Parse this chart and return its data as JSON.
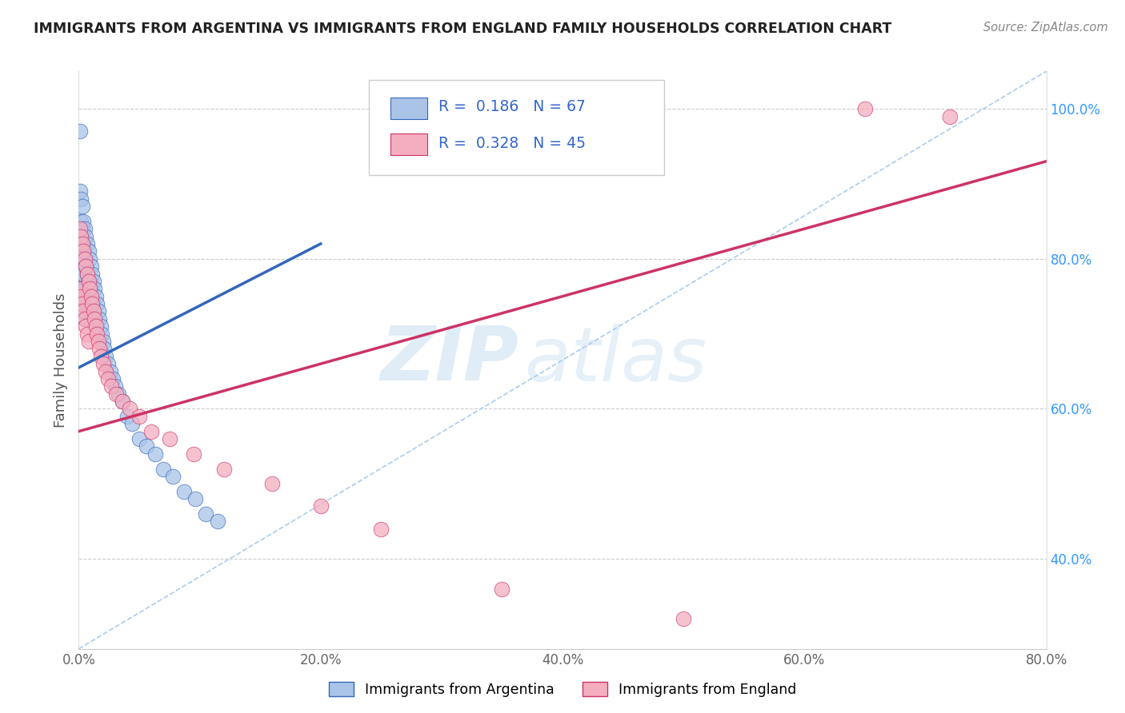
{
  "title": "IMMIGRANTS FROM ARGENTINA VS IMMIGRANTS FROM ENGLAND FAMILY HOUSEHOLDS CORRELATION CHART",
  "source": "Source: ZipAtlas.com",
  "ylabel": "Family Households",
  "argentina_R": 0.186,
  "argentina_N": 67,
  "england_R": 0.328,
  "england_N": 45,
  "watermark_zip": "ZIP",
  "watermark_atlas": "atlas",
  "argentina_color": "#aac4e8",
  "england_color": "#f5aec0",
  "argentina_line_color": "#3366bb",
  "england_line_color": "#cc3366",
  "ref_line_color": "#aaccee",
  "background": "#ffffff",
  "xlim": [
    0.0,
    0.8
  ],
  "ylim": [
    0.28,
    1.05
  ],
  "y_ticks_right": [
    0.4,
    0.6,
    0.8,
    1.0
  ],
  "x_ticks": [
    0.0,
    0.2,
    0.4,
    0.6,
    0.8
  ],
  "argentina_line_x": [
    0.0,
    0.2
  ],
  "argentina_line_y": [
    0.655,
    0.82
  ],
  "england_line_x": [
    0.0,
    0.8
  ],
  "england_line_y": [
    0.57,
    0.93
  ],
  "ref_line_x": [
    0.0,
    0.8
  ],
  "ref_line_y": [
    0.28,
    1.05
  ],
  "argentina_x": [
    0.001,
    0.001,
    0.001,
    0.001,
    0.002,
    0.002,
    0.002,
    0.002,
    0.002,
    0.003,
    0.003,
    0.003,
    0.003,
    0.003,
    0.004,
    0.004,
    0.004,
    0.004,
    0.005,
    0.005,
    0.005,
    0.005,
    0.006,
    0.006,
    0.006,
    0.007,
    0.007,
    0.007,
    0.008,
    0.008,
    0.008,
    0.009,
    0.009,
    0.009,
    0.01,
    0.01,
    0.011,
    0.011,
    0.012,
    0.012,
    0.013,
    0.014,
    0.015,
    0.016,
    0.017,
    0.018,
    0.019,
    0.02,
    0.021,
    0.022,
    0.024,
    0.026,
    0.028,
    0.03,
    0.033,
    0.036,
    0.04,
    0.044,
    0.05,
    0.056,
    0.063,
    0.07,
    0.078,
    0.087,
    0.096,
    0.105,
    0.115
  ],
  "argentina_y": [
    0.97,
    0.89,
    0.83,
    0.76,
    0.88,
    0.85,
    0.82,
    0.78,
    0.74,
    0.87,
    0.84,
    0.8,
    0.76,
    0.73,
    0.85,
    0.82,
    0.78,
    0.75,
    0.84,
    0.8,
    0.76,
    0.72,
    0.83,
    0.79,
    0.75,
    0.82,
    0.78,
    0.74,
    0.81,
    0.77,
    0.73,
    0.8,
    0.77,
    0.73,
    0.79,
    0.76,
    0.78,
    0.74,
    0.77,
    0.73,
    0.76,
    0.75,
    0.74,
    0.73,
    0.72,
    0.71,
    0.7,
    0.69,
    0.68,
    0.67,
    0.66,
    0.65,
    0.64,
    0.63,
    0.62,
    0.61,
    0.59,
    0.58,
    0.56,
    0.55,
    0.54,
    0.52,
    0.51,
    0.49,
    0.48,
    0.46,
    0.45
  ],
  "england_x": [
    0.001,
    0.001,
    0.002,
    0.002,
    0.003,
    0.003,
    0.004,
    0.004,
    0.005,
    0.005,
    0.006,
    0.006,
    0.007,
    0.007,
    0.008,
    0.008,
    0.009,
    0.01,
    0.011,
    0.012,
    0.013,
    0.014,
    0.015,
    0.016,
    0.017,
    0.018,
    0.02,
    0.022,
    0.024,
    0.027,
    0.031,
    0.036,
    0.042,
    0.05,
    0.06,
    0.075,
    0.095,
    0.12,
    0.16,
    0.2,
    0.25,
    0.35,
    0.5,
    0.65,
    0.72
  ],
  "england_y": [
    0.84,
    0.76,
    0.83,
    0.75,
    0.82,
    0.74,
    0.81,
    0.73,
    0.8,
    0.72,
    0.79,
    0.71,
    0.78,
    0.7,
    0.77,
    0.69,
    0.76,
    0.75,
    0.74,
    0.73,
    0.72,
    0.71,
    0.7,
    0.69,
    0.68,
    0.67,
    0.66,
    0.65,
    0.64,
    0.63,
    0.62,
    0.61,
    0.6,
    0.59,
    0.57,
    0.56,
    0.54,
    0.52,
    0.5,
    0.47,
    0.44,
    0.36,
    0.32,
    1.0,
    0.99
  ]
}
